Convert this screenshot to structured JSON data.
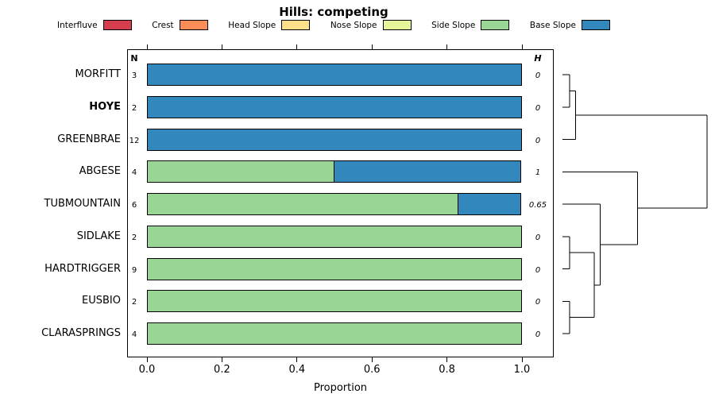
{
  "chart_data": {
    "type": "bar",
    "orientation": "horizontal-stacked",
    "title": "Hills: competing",
    "xlabel": "Proportion",
    "xlim": [
      0,
      1
    ],
    "x_ticks": [
      0.0,
      0.2,
      0.4,
      0.6,
      0.8,
      1.0
    ],
    "grid": false,
    "legend_position": "top",
    "legend": [
      {
        "label": "Interfluve",
        "color": "#d53e4f"
      },
      {
        "label": "Crest",
        "color": "#fc8d59"
      },
      {
        "label": "Head Slope",
        "color": "#fee08b"
      },
      {
        "label": "Nose Slope",
        "color": "#e6f598"
      },
      {
        "label": "Side Slope",
        "color": "#99d594"
      },
      {
        "label": "Base Slope",
        "color": "#3288bd"
      }
    ],
    "columns": {
      "n_header": "N",
      "h_header": "H"
    },
    "rows": [
      {
        "label": "MORFITT",
        "bold": false,
        "n": 3,
        "h": "0",
        "segments": [
          {
            "category": "Base Slope",
            "value": 1.0
          }
        ]
      },
      {
        "label": "HOYE",
        "bold": true,
        "n": 2,
        "h": "0",
        "segments": [
          {
            "category": "Base Slope",
            "value": 1.0
          }
        ]
      },
      {
        "label": "GREENBRAE",
        "bold": false,
        "n": 12,
        "h": "0",
        "segments": [
          {
            "category": "Base Slope",
            "value": 1.0
          }
        ]
      },
      {
        "label": "ABGESE",
        "bold": false,
        "n": 4,
        "h": "1",
        "segments": [
          {
            "category": "Side Slope",
            "value": 0.5
          },
          {
            "category": "Base Slope",
            "value": 0.5
          }
        ]
      },
      {
        "label": "TUBMOUNTAIN",
        "bold": false,
        "n": 6,
        "h": "0.65",
        "segments": [
          {
            "category": "Side Slope",
            "value": 0.83
          },
          {
            "category": "Base Slope",
            "value": 0.17
          }
        ]
      },
      {
        "label": "SIDLAKE",
        "bold": false,
        "n": 2,
        "h": "0",
        "segments": [
          {
            "category": "Side Slope",
            "value": 1.0
          }
        ]
      },
      {
        "label": "HARDTRIGGER",
        "bold": false,
        "n": 9,
        "h": "0",
        "segments": [
          {
            "category": "Side Slope",
            "value": 1.0
          }
        ]
      },
      {
        "label": "EUSBIO",
        "bold": false,
        "n": 2,
        "h": "0",
        "segments": [
          {
            "category": "Side Slope",
            "value": 1.0
          }
        ]
      },
      {
        "label": "CLARASPRINGS",
        "bold": false,
        "n": 4,
        "h": "0",
        "segments": [
          {
            "category": "Side Slope",
            "value": 1.0
          }
        ]
      }
    ],
    "dendrogram": {
      "note": "heights normalized 0-1; L# = leaf row index, C# = prior merge index",
      "merges": [
        [
          "L0",
          "L1",
          0.05
        ],
        [
          "C0",
          "L2",
          0.09
        ],
        [
          "L5",
          "L6",
          0.05
        ],
        [
          "L7",
          "L8",
          0.05
        ],
        [
          "C2",
          "C3",
          0.22
        ],
        [
          "L4",
          "C4",
          0.26
        ],
        [
          "L3",
          "C5",
          0.52
        ],
        [
          "C1",
          "C6",
          1.0
        ]
      ]
    }
  }
}
